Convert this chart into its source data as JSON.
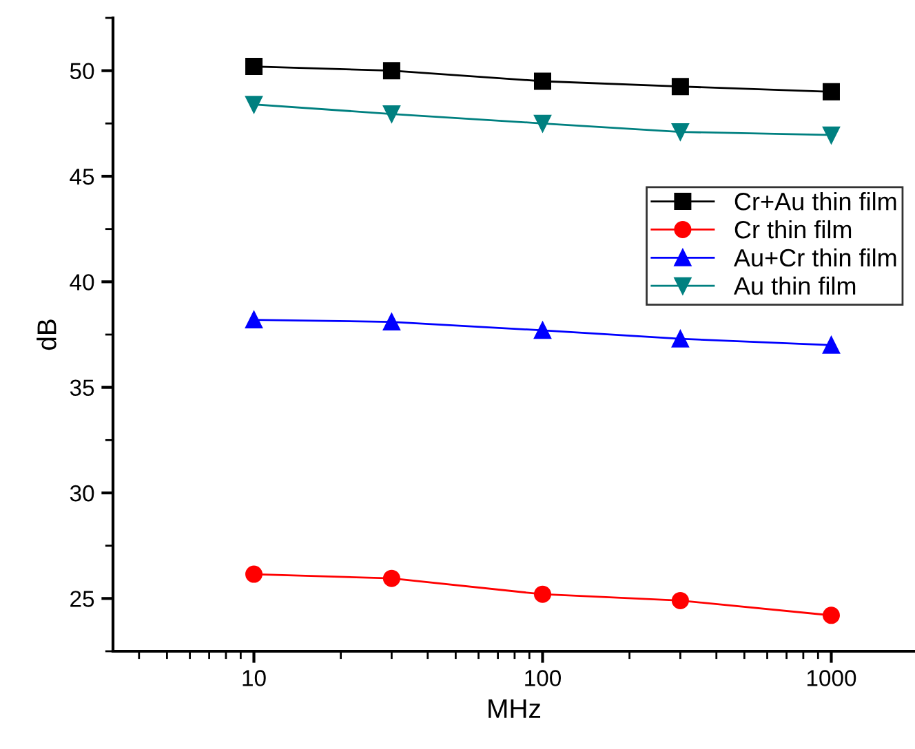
{
  "chart_data": {
    "type": "line",
    "xlabel": "MHz",
    "ylabel": "dB",
    "log": "x",
    "x": [
      10,
      30,
      100,
      300,
      1000
    ],
    "xlim": [
      3.25,
      1950
    ],
    "xticks": [
      10,
      100,
      1000
    ],
    "ylim": [
      22.5,
      52.5
    ],
    "yticks": [
      25,
      30,
      35,
      40,
      45,
      50
    ],
    "legend": "right",
    "grid": false,
    "series": [
      {
        "name": "Cr+Au thin film",
        "color": "#000000",
        "marker": "square",
        "values": [
          50.2,
          50.0,
          49.5,
          49.25,
          49.0
        ]
      },
      {
        "name": "Cr thin film",
        "color": "#ff0000",
        "marker": "circle",
        "values": [
          26.15,
          25.95,
          25.2,
          24.9,
          24.2
        ]
      },
      {
        "name": "Au+Cr thin film",
        "color": "#0000ff",
        "marker": "triangle",
        "values": [
          38.2,
          38.1,
          37.7,
          37.3,
          37.0
        ]
      },
      {
        "name": "Au thin film",
        "color": "#008080",
        "marker": "triangle_down",
        "values": [
          48.4,
          47.95,
          47.5,
          47.1,
          46.95
        ]
      }
    ]
  }
}
